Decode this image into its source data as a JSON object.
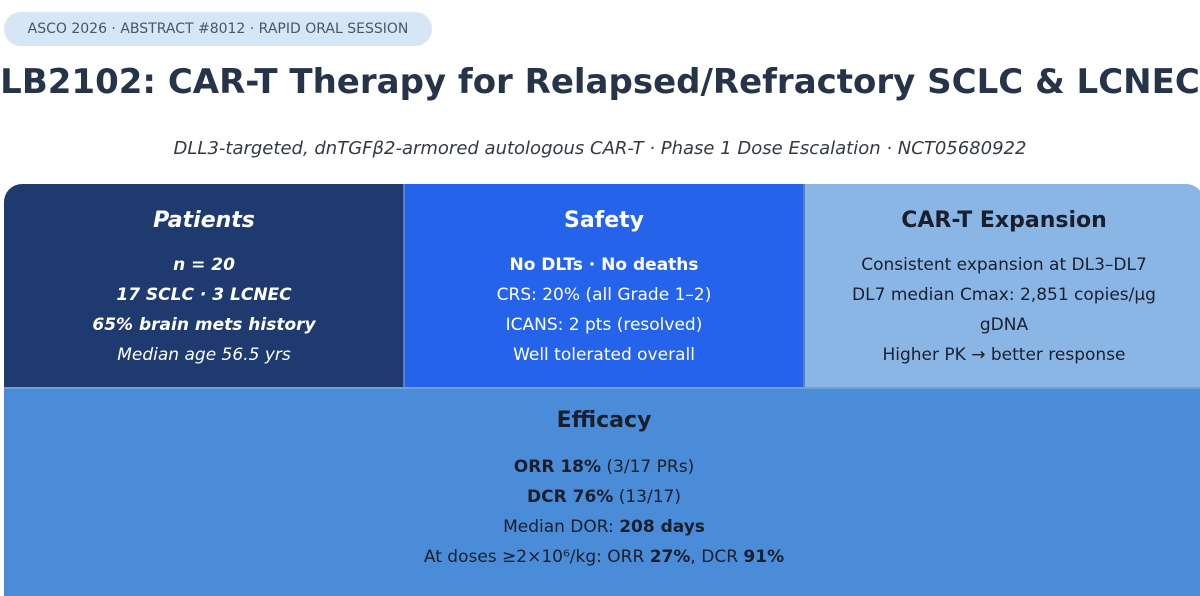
{
  "tag": "ASCO 2026 · ABSTRACT #8012 · RAPID ORAL SESSION",
  "title": "LB2102: CAR-T Therapy for Relapsed/Refractory SCLC & LCNEC",
  "subtitle": "DLL3-targeted, dnTGFβ2-armored autologous CAR-T · Phase 1 Dose Escalation · NCT05680922",
  "patients": {
    "heading": "Patients",
    "lines": [
      "n = 20",
      "17 SCLC · 3 LCNEC",
      "65% brain mets history",
      "Median age 56.5 yrs"
    ]
  },
  "safety": {
    "heading": "Safety",
    "lines": [
      "No DLTs · No deaths",
      "CRS: 20% (all Grade 1–2)",
      "ICANS: 2 pts (resolved)",
      "Well tolerated overall"
    ]
  },
  "expansion": {
    "heading": "CAR-T Expansion",
    "lines": [
      "Consistent expansion at DL3–DL7",
      "DL7 median Cmax: 2,851 copies/µg",
      "gDNA",
      "Higher PK → better response"
    ]
  },
  "efficacy": {
    "heading": "Efficacy",
    "orr_label": "ORR 18%",
    "orr_detail": " (3/17 PRs)",
    "dcr_label": "DCR 76%",
    "dcr_detail": " (13/17)",
    "dor_prefix": "Median DOR: ",
    "dor_value": "208 days",
    "dose_prefix": "At doses ≥2×10⁶/kg: ORR ",
    "dose_orr": "27%",
    "dose_mid": ", DCR ",
    "dose_dcr": "91%"
  },
  "colors": {
    "patients": "#1e3a6e",
    "safety": "#2563eb",
    "expansion": "#8ab6e6",
    "efficacy": "#4a8cd8"
  }
}
